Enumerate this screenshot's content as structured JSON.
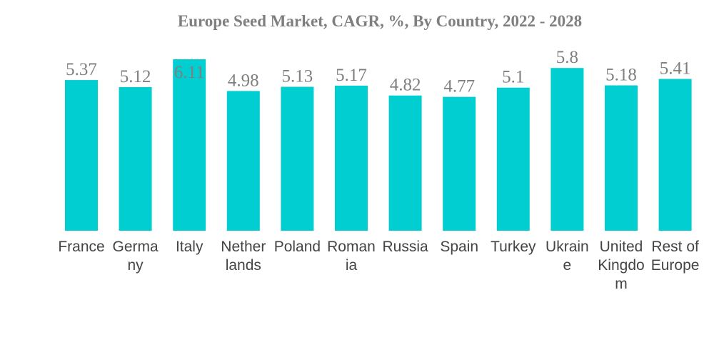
{
  "chart_data": {
    "type": "bar",
    "title": "Europe Seed Market, CAGR, %, By Country, 2022 - 2028",
    "categories": [
      "France",
      "Germany",
      "Italy",
      "Netherlands",
      "Poland",
      "Romania",
      "Russia",
      "Spain",
      "Turkey",
      "Ukraine",
      "United Kingdom",
      "Rest of Europe"
    ],
    "category_label_lines": [
      [
        "France"
      ],
      [
        "Germa",
        "ny"
      ],
      [
        "Italy"
      ],
      [
        "Nether",
        "lands"
      ],
      [
        "Poland"
      ],
      [
        "Roman",
        "ia"
      ],
      [
        "Russia"
      ],
      [
        "Spain"
      ],
      [
        "Turkey"
      ],
      [
        "Ukrain",
        "e"
      ],
      [
        "United",
        "Kingdo",
        "m"
      ],
      [
        "Rest of",
        "Europe"
      ]
    ],
    "values": [
      5.37,
      5.12,
      6.11,
      4.98,
      5.13,
      5.17,
      4.82,
      4.77,
      5.1,
      5.8,
      5.18,
      5.41
    ],
    "value_labels": [
      "5.37",
      "5.12",
      "6.11",
      "4.98",
      "5.13",
      "5.17",
      "4.82",
      "4.77",
      "5.1",
      "5.8",
      "5.18",
      "5.41"
    ],
    "xlabel": "",
    "ylabel": "",
    "ylim": [
      0,
      6.11
    ],
    "grid": false,
    "legend": "none",
    "bar_color": "#00ced1"
  }
}
